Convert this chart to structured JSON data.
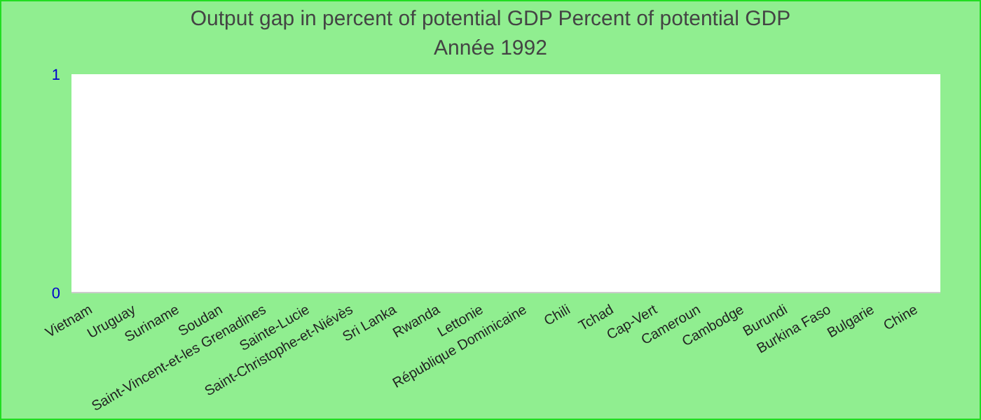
{
  "chart_data": {
    "type": "bar",
    "title": "Output gap in percent of potential GDP  Percent of potential GDP",
    "subtitle": "Année 1992",
    "categories": [
      "Vietnam",
      "Uruguay",
      "Suriname",
      "Soudan",
      "Saint-Vincent-et-les Grenadines",
      "Sainte-Lucie",
      "Saint-Christophe-et-Niévès",
      "Sri Lanka",
      "Rwanda",
      "Lettonie",
      "République Dominicaine",
      "Chili",
      "Tchad",
      "Cap-Vert",
      "Cameroun",
      "Cambodge",
      "Burundi",
      "Burkina Faso",
      "Bulgarie",
      "Chine"
    ],
    "values": [
      0,
      0,
      0,
      0,
      0,
      0,
      0,
      0,
      0,
      0,
      0,
      0,
      0,
      0,
      0,
      0,
      0,
      0,
      0,
      0
    ],
    "ylim": [
      0,
      1
    ],
    "yticks": [
      0,
      1
    ],
    "legend": false
  }
}
